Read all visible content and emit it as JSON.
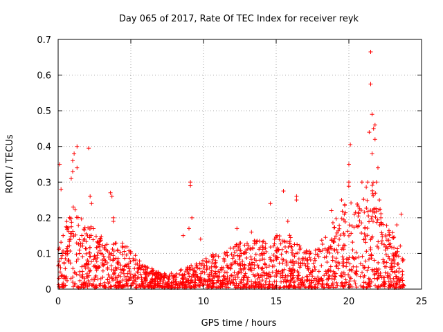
{
  "chart_data": {
    "type": "scatter",
    "title": "Day 065 of 2017, Rate Of TEC Index for receiver reyk",
    "xlabel": "GPS time / hours",
    "ylabel": "ROTI / TECUs",
    "xlim": [
      0,
      25
    ],
    "ylim": [
      0,
      0.7
    ],
    "xticks": [
      "0",
      "5",
      "10",
      "15",
      "20",
      "25"
    ],
    "yticks": [
      "0",
      "0.1",
      "0.2",
      "0.3",
      "0.4",
      "0.5",
      "0.6",
      "0.7"
    ],
    "grid": true,
    "marker": "plus",
    "color": "#ff0000",
    "envelope_hours": [
      0,
      0.5,
      1,
      1.5,
      2,
      2.5,
      3,
      3.5,
      4,
      4.5,
      5,
      5.5,
      6,
      6.5,
      7,
      7.5,
      8,
      8.5,
      9,
      9.5,
      10,
      10.5,
      11,
      11.5,
      12,
      12.5,
      13,
      13.5,
      14,
      14.5,
      15,
      15.5,
      16,
      16.5,
      17,
      17.5,
      18,
      18.5,
      19,
      19.5,
      20,
      20.5,
      21,
      21.5,
      22,
      22.5,
      23,
      23.5,
      23.8
    ],
    "envelope_typical_max": [
      0.2,
      0.2,
      0.22,
      0.2,
      0.18,
      0.16,
      0.14,
      0.13,
      0.12,
      0.12,
      0.1,
      0.08,
      0.06,
      0.05,
      0.04,
      0.04,
      0.04,
      0.05,
      0.06,
      0.07,
      0.08,
      0.09,
      0.09,
      0.1,
      0.11,
      0.12,
      0.12,
      0.13,
      0.13,
      0.13,
      0.14,
      0.14,
      0.14,
      0.12,
      0.1,
      0.1,
      0.12,
      0.15,
      0.18,
      0.2,
      0.28,
      0.22,
      0.25,
      0.3,
      0.25,
      0.18,
      0.15,
      0.12,
      0.1
    ],
    "outliers": [
      {
        "x": 0.1,
        "y": 0.35
      },
      {
        "x": 0.2,
        "y": 0.28
      },
      {
        "x": 1.0,
        "y": 0.33
      },
      {
        "x": 1.0,
        "y": 0.36
      },
      {
        "x": 1.1,
        "y": 0.38
      },
      {
        "x": 1.3,
        "y": 0.4
      },
      {
        "x": 1.3,
        "y": 0.34
      },
      {
        "x": 0.9,
        "y": 0.31
      },
      {
        "x": 2.1,
        "y": 0.395
      },
      {
        "x": 2.2,
        "y": 0.26
      },
      {
        "x": 2.3,
        "y": 0.24
      },
      {
        "x": 3.6,
        "y": 0.27
      },
      {
        "x": 3.7,
        "y": 0.26
      },
      {
        "x": 3.8,
        "y": 0.2
      },
      {
        "x": 3.8,
        "y": 0.19
      },
      {
        "x": 9.1,
        "y": 0.3
      },
      {
        "x": 9.1,
        "y": 0.29
      },
      {
        "x": 9.2,
        "y": 0.2
      },
      {
        "x": 9.0,
        "y": 0.17
      },
      {
        "x": 8.6,
        "y": 0.15
      },
      {
        "x": 9.8,
        "y": 0.14
      },
      {
        "x": 12.3,
        "y": 0.17
      },
      {
        "x": 13.3,
        "y": 0.16
      },
      {
        "x": 14.6,
        "y": 0.24
      },
      {
        "x": 15.5,
        "y": 0.275
      },
      {
        "x": 16.4,
        "y": 0.25
      },
      {
        "x": 16.4,
        "y": 0.26
      },
      {
        "x": 15.8,
        "y": 0.19
      },
      {
        "x": 18.8,
        "y": 0.22
      },
      {
        "x": 19.5,
        "y": 0.25
      },
      {
        "x": 20.0,
        "y": 0.3
      },
      {
        "x": 20.0,
        "y": 0.35
      },
      {
        "x": 20.1,
        "y": 0.405
      },
      {
        "x": 20.9,
        "y": 0.3
      },
      {
        "x": 21.3,
        "y": 0.3
      },
      {
        "x": 21.4,
        "y": 0.44
      },
      {
        "x": 21.5,
        "y": 0.665
      },
      {
        "x": 21.5,
        "y": 0.575
      },
      {
        "x": 21.6,
        "y": 0.49
      },
      {
        "x": 21.7,
        "y": 0.45
      },
      {
        "x": 21.8,
        "y": 0.46
      },
      {
        "x": 21.8,
        "y": 0.42
      },
      {
        "x": 21.6,
        "y": 0.38
      },
      {
        "x": 22.0,
        "y": 0.34
      },
      {
        "x": 21.9,
        "y": 0.3
      },
      {
        "x": 22.1,
        "y": 0.25
      },
      {
        "x": 22.2,
        "y": 0.2
      },
      {
        "x": 23.3,
        "y": 0.18
      },
      {
        "x": 23.6,
        "y": 0.21
      }
    ]
  }
}
